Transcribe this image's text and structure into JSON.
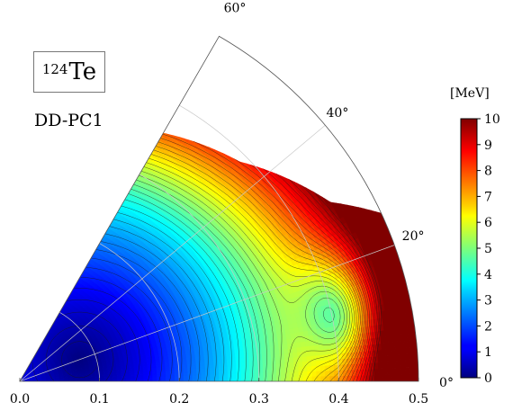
{
  "nucleus": {
    "mass": "124",
    "symbol": "Te"
  },
  "model": "DD-PC1",
  "colorbar": {
    "unit": "[MeV]",
    "min": 0,
    "max": 10,
    "ticks": [
      "0",
      "1",
      "2",
      "3",
      "4",
      "5",
      "6",
      "7",
      "8",
      "9",
      "10"
    ],
    "colormap": "jet"
  },
  "chart_data": {
    "type": "heatmap",
    "subtype": "polar beta-gamma potential energy surface",
    "title": "",
    "xlabel": "",
    "ylabel": "",
    "beta_range": [
      0,
      0.5
    ],
    "gamma_range_deg": [
      0,
      60
    ],
    "beta_ticks": [
      "0.0",
      "0.1",
      "0.2",
      "0.3",
      "0.4",
      "0.5"
    ],
    "gamma_ticks": [
      "0°",
      "20°",
      "40°",
      "60°"
    ],
    "contour_step_MeV": 0.25,
    "min_location": {
      "beta": 0.08,
      "gamma_deg": 20,
      "energy": 0
    },
    "energy_cutoff_MeV": 10,
    "boundary_beta_at_gamma": [
      {
        "gamma_deg": 0,
        "beta": 0.5
      },
      {
        "gamma_deg": 20,
        "beta": 0.5
      },
      {
        "gamma_deg": 25,
        "beta": 0.5
      },
      {
        "gamma_deg": 30,
        "beta": 0.45
      },
      {
        "gamma_deg": 35,
        "beta": 0.43
      },
      {
        "gamma_deg": 40,
        "beta": 0.41
      },
      {
        "gamma_deg": 45,
        "beta": 0.39
      },
      {
        "gamma_deg": 50,
        "beta": 0.38
      },
      {
        "gamma_deg": 55,
        "beta": 0.37
      },
      {
        "gamma_deg": 60,
        "beta": 0.36
      }
    ]
  }
}
